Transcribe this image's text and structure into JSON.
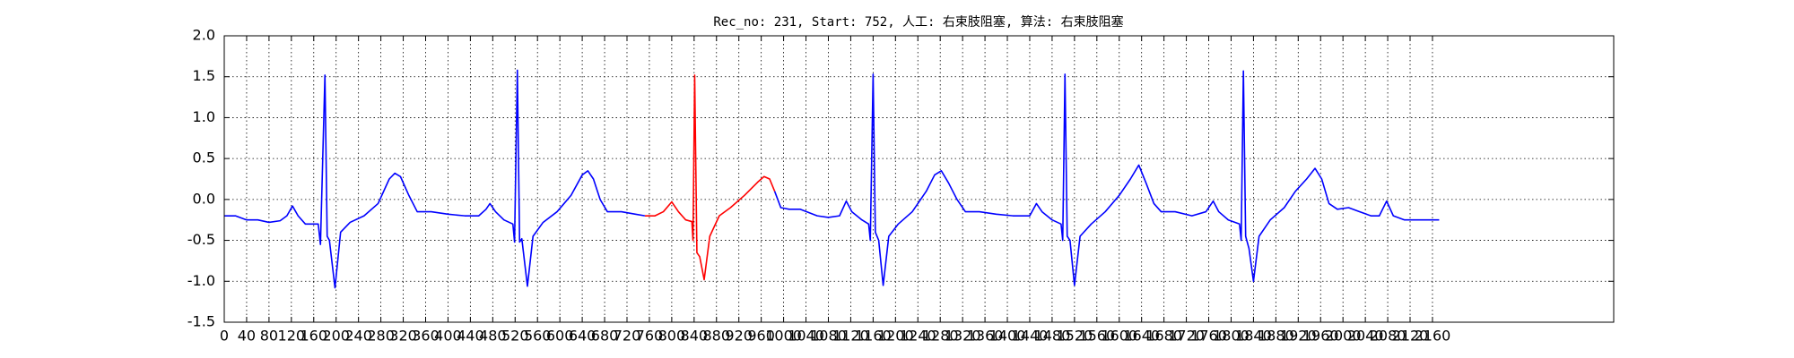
{
  "chart_data": {
    "type": "line",
    "title": "Rec_no: 231, Start: 752, 人工: 右束肢阻塞, 算法: 右束肢阻塞",
    "xlim": [
      0,
      2484
    ],
    "ylim": [
      -1.5,
      2.0
    ],
    "xticks": [
      0,
      40,
      80,
      120,
      160,
      200,
      240,
      280,
      320,
      360,
      400,
      440,
      480,
      520,
      560,
      600,
      640,
      680,
      720,
      760,
      800,
      840,
      880,
      920,
      960,
      1000,
      1040,
      1080,
      1120,
      1160,
      1200,
      1240,
      1280,
      1320,
      1360,
      1400,
      1440,
      1480,
      1520,
      1560,
      1600,
      1640,
      1680,
      1720,
      1760,
      1800,
      1840,
      1880,
      1920,
      1960,
      2000,
      2040,
      2080,
      2120,
      2160
    ],
    "yticks": [
      {
        "value": 2.0,
        "label": "2.0"
      },
      1.5,
      {
        "value": 1.0,
        "label": "1.0"
      },
      0.5,
      {
        "value": 0.0,
        "label": "0.0"
      },
      -0.5,
      {
        "value": -1.0,
        "label": "-1.0"
      },
      -1.5
    ],
    "grid": true,
    "series": [
      {
        "color": "#0000ff",
        "x": [
          0,
          20,
          40,
          60,
          80,
          100,
          112,
          122,
          132,
          145,
          160,
          168,
          172,
          180,
          184,
          188,
          198,
          208,
          225,
          250,
          275,
          295,
          305,
          315,
          330,
          345,
          370,
          400,
          430,
          455,
          468,
          475,
          485,
          500,
          516,
          519,
          524,
          528,
          532,
          542,
          552,
          570,
          595,
          620,
          640,
          650,
          660,
          672,
          685,
          710,
          735,
          752,
          868,
          984,
          995,
          1010,
          1030,
          1060,
          1080,
          1100,
          1112,
          1122,
          1140,
          1152,
          1155,
          1160,
          1164,
          1170,
          1178,
          1188,
          1205,
          1230,
          1255,
          1270,
          1282,
          1295,
          1310,
          1325,
          1350,
          1380,
          1410,
          1440,
          1452,
          1462,
          1480,
          1496,
          1499,
          1503,
          1507,
          1512,
          1520,
          1530,
          1550,
          1575,
          1600,
          1620,
          1635,
          1648,
          1662,
          1675,
          1700,
          1730,
          1755,
          1768,
          1778,
          1795,
          1815,
          1818,
          1822,
          1826,
          1832,
          1840,
          1850,
          1870,
          1895,
          1915,
          1935,
          1950,
          1962,
          1975,
          1990,
          2010,
          2030,
          2050,
          2065,
          2078,
          2090,
          2110,
          2140,
          2172
        ],
        "values": [
          -0.2,
          -0.2,
          -0.25,
          -0.25,
          -0.28,
          -0.26,
          -0.2,
          -0.08,
          -0.2,
          -0.3,
          -0.3,
          -0.3,
          -0.55,
          1.52,
          -0.45,
          -0.5,
          -1.08,
          -0.4,
          -0.28,
          -0.2,
          -0.05,
          0.25,
          0.32,
          0.28,
          0.05,
          -0.15,
          -0.15,
          -0.18,
          -0.2,
          -0.2,
          -0.12,
          -0.05,
          -0.15,
          -0.25,
          -0.3,
          -0.52,
          1.58,
          -0.52,
          -0.48,
          -1.06,
          -0.45,
          -0.28,
          -0.15,
          0.05,
          0.3,
          0.35,
          0.25,
          0,
          -0.15,
          -0.15,
          -0.18,
          -0.2,
          null,
          0.1,
          -0.1,
          -0.12,
          -0.12,
          -0.2,
          -0.22,
          -0.2,
          -0.02,
          -0.15,
          -0.25,
          -0.3,
          -0.5,
          1.53,
          -0.4,
          -0.5,
          -1.05,
          -0.45,
          -0.3,
          -0.15,
          0.1,
          0.3,
          0.35,
          0.2,
          0,
          -0.15,
          -0.15,
          -0.18,
          -0.2,
          -0.2,
          -0.05,
          -0.15,
          -0.25,
          -0.3,
          -0.5,
          1.53,
          -0.45,
          -0.5,
          -1.05,
          -0.45,
          -0.3,
          -0.15,
          0.05,
          0.25,
          0.42,
          0.2,
          -0.05,
          -0.15,
          -0.15,
          -0.2,
          -0.15,
          -0.02,
          -0.15,
          -0.25,
          -0.3,
          -0.5,
          1.57,
          -0.45,
          -0.6,
          -1.0,
          -0.45,
          -0.25,
          -0.1,
          0.1,
          0.25,
          0.38,
          0.25,
          -0.05,
          -0.12,
          -0.1,
          -0.15,
          -0.2,
          -0.2,
          -0.02,
          -0.2,
          -0.25,
          -0.25,
          -0.25
        ]
      },
      {
        "color": "#ff0000",
        "x": [
          752,
          770,
          785,
          800,
          812,
          825,
          836,
          838,
          841,
          845,
          850,
          858,
          868,
          885,
          905,
          930,
          955,
          965,
          975,
          984
        ],
        "values": [
          -0.2,
          -0.2,
          -0.15,
          -0.03,
          -0.15,
          -0.25,
          -0.27,
          -0.5,
          1.52,
          -0.65,
          -0.7,
          -0.98,
          -0.45,
          -0.2,
          -0.1,
          0.05,
          0.22,
          0.28,
          0.25,
          0.1
        ]
      }
    ]
  }
}
